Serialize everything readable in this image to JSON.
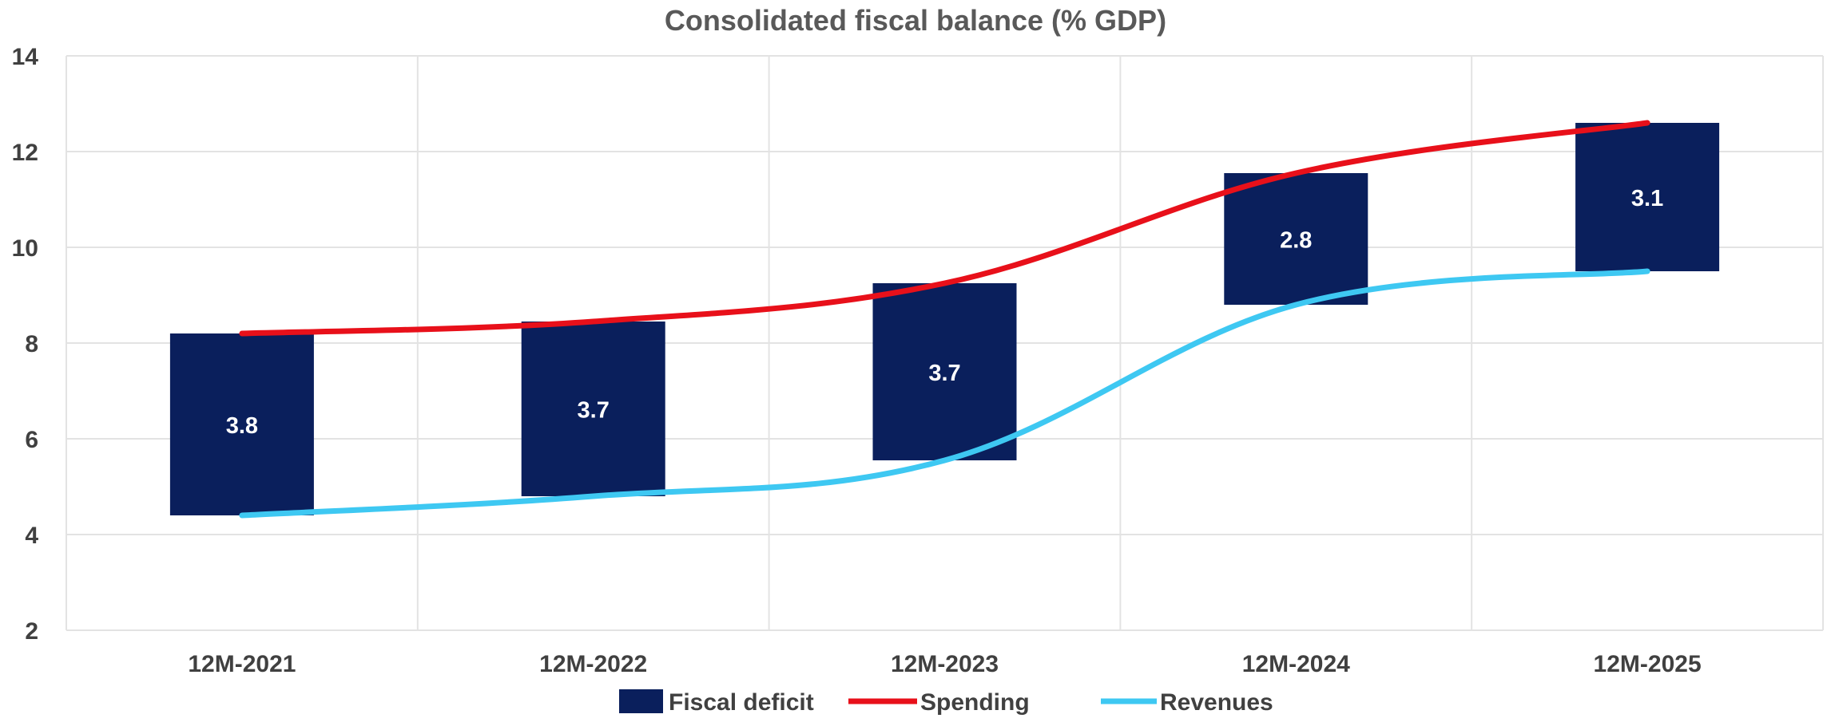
{
  "chart_data": {
    "type": "bar",
    "title": "Consolidated fiscal balance (% GDP)",
    "categories": [
      "12M-2021",
      "12M-2022",
      "12M-2023",
      "12M-2024",
      "12M-2025"
    ],
    "ylim": [
      2,
      14
    ],
    "yticks": [
      2,
      4,
      6,
      8,
      10,
      12,
      14
    ],
    "grid": true,
    "legend_position": "bottom",
    "series": [
      {
        "name": "Fiscal deficit",
        "kind": "floating-bar",
        "color": "#0a1f5c",
        "low": [
          4.4,
          4.8,
          5.55,
          8.8,
          9.5
        ],
        "high": [
          8.2,
          8.45,
          9.25,
          11.55,
          12.6
        ],
        "labels": [
          "3.8",
          "3.7",
          "3.7",
          "2.8",
          "3.1"
        ]
      },
      {
        "name": "Spending",
        "kind": "line",
        "color": "#e8101a",
        "values": [
          8.2,
          8.45,
          9.25,
          11.55,
          12.6
        ]
      },
      {
        "name": "Revenues",
        "kind": "line",
        "color": "#3ec8f2",
        "values": [
          4.4,
          4.8,
          5.55,
          8.8,
          9.5
        ]
      }
    ]
  }
}
